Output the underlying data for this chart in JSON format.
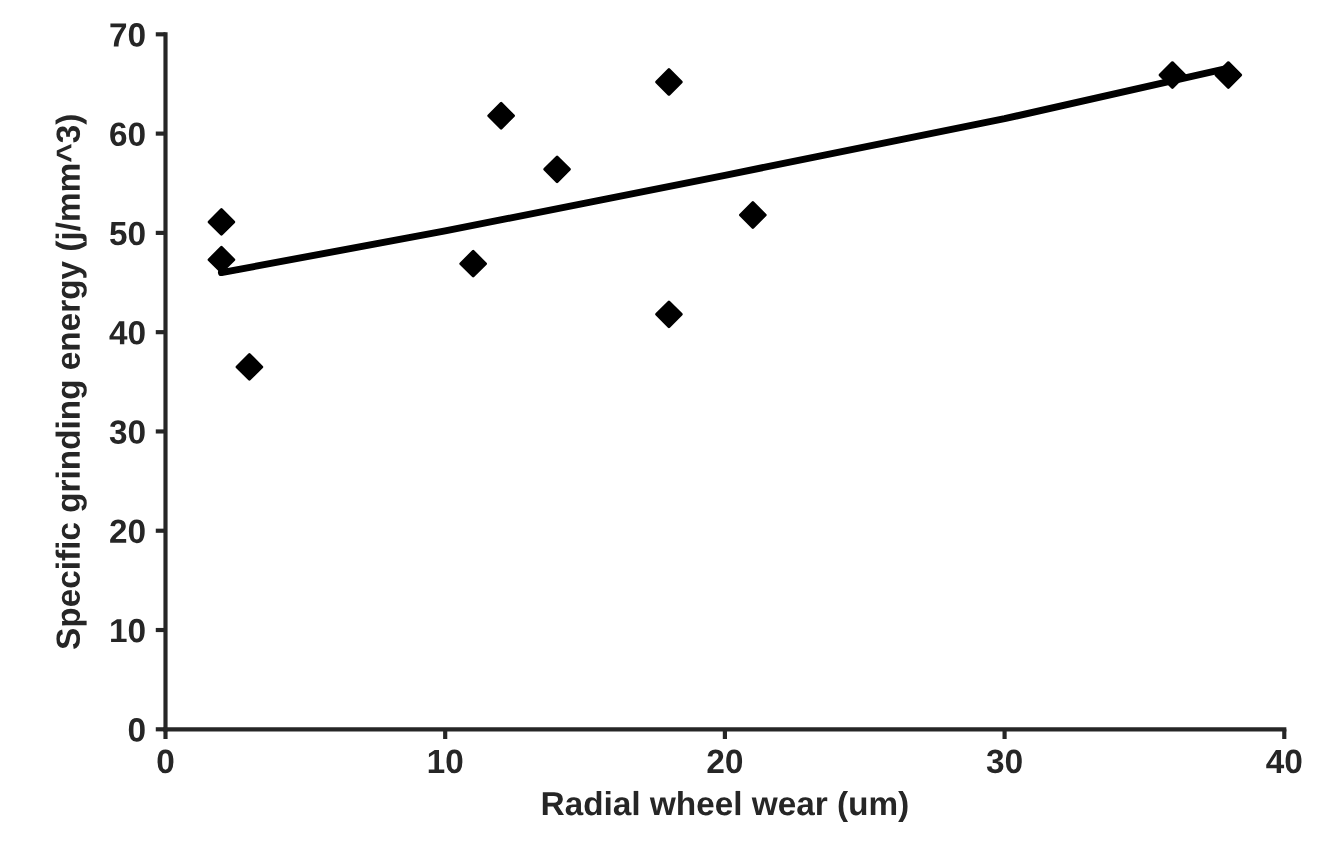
{
  "chart_data": {
    "type": "scatter",
    "xlabel": "Radial wheel wear (um)",
    "ylabel": "Specific grinding energy (j/mm^3)",
    "xlim": [
      0,
      40
    ],
    "xticks": [
      0,
      10,
      20,
      30,
      40
    ],
    "ylim": [
      0,
      70
    ],
    "yticks": [
      0,
      10,
      20,
      30,
      40,
      50,
      60,
      70
    ],
    "grid": false,
    "legend": false,
    "marker": "diamond",
    "series": [
      {
        "color": "#000000",
        "x": [
          2,
          2,
          3,
          11,
          12,
          14,
          18,
          18,
          21,
          36,
          38
        ],
        "values": [
          51.1,
          47.3,
          36.5,
          46.9,
          61.8,
          56.4,
          65.2,
          41.8,
          51.8,
          65.9,
          65.9
        ]
      },
      {
        "type": "line",
        "color": "#000000",
        "marker": "none",
        "line_style": "solid",
        "x": [
          2,
          10,
          20,
          30,
          38
        ],
        "values": [
          46.0,
          50.2,
          55.8,
          61.5,
          66.6
        ]
      }
    ]
  }
}
